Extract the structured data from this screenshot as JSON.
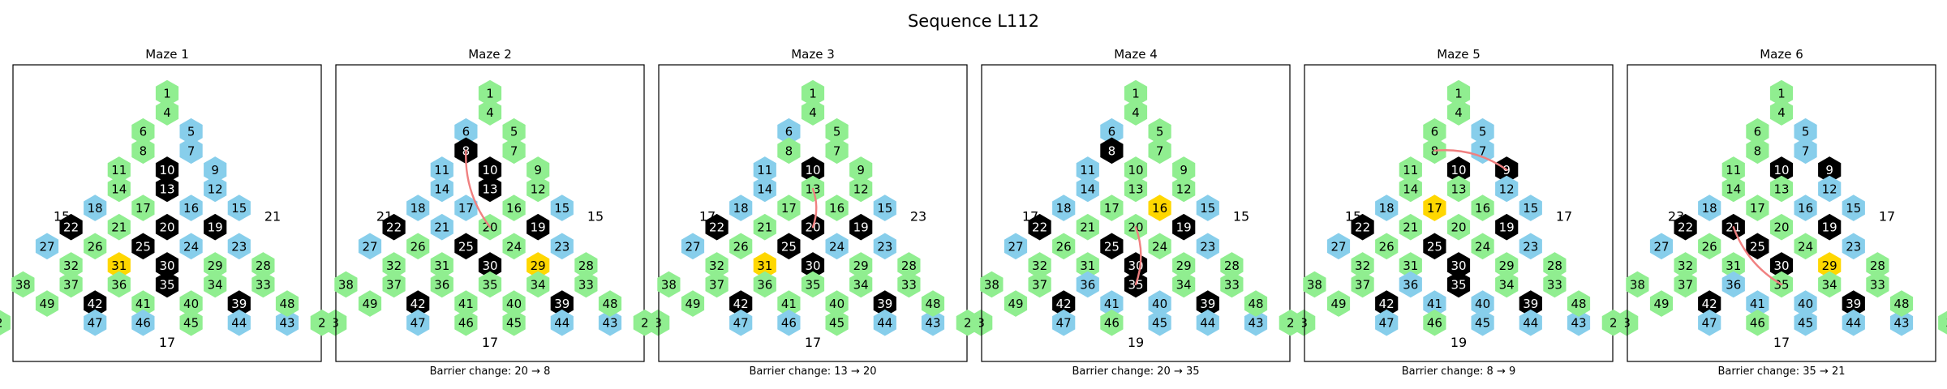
{
  "figure": {
    "title": "Sequence L112"
  },
  "colors": {
    "green": "#90EE90",
    "blue": "#87CEEB",
    "black": "#000000",
    "gold": "#FFD700",
    "barrier": "#F08080"
  },
  "mazes": [
    {
      "title": "Maze 1",
      "left_label": "15",
      "right_label": "21",
      "bottom_label": "17",
      "caption": "",
      "cells": {
        "1": "green",
        "2": "green",
        "3": "green",
        "4": "green",
        "5": "blue",
        "6": "green",
        "7": "blue",
        "8": "green",
        "9": "blue",
        "10": "black",
        "11": "green",
        "12": "blue",
        "13": "black",
        "14": "green",
        "15": "blue",
        "16": "blue",
        "17": "green",
        "18": "blue",
        "19": "black",
        "20": "black",
        "21": "green",
        "22": "black",
        "23": "blue",
        "24": "blue",
        "25": "black",
        "26": "green",
        "27": "blue",
        "28": "green",
        "29": "green",
        "30": "black",
        "31": "gold",
        "32": "green",
        "33": "green",
        "34": "green",
        "35": "black",
        "36": "green",
        "37": "green",
        "38": "green",
        "39": "black",
        "40": "green",
        "41": "green",
        "42": "black",
        "43": "blue",
        "44": "blue",
        "45": "green",
        "46": "blue",
        "47": "blue",
        "48": "green",
        "49": "green"
      },
      "barrier": null
    },
    {
      "title": "Maze 2",
      "left_label": "21",
      "right_label": "15",
      "bottom_label": "17",
      "caption": "Barrier change: 20 → 8",
      "cells": {
        "1": "green",
        "2": "green",
        "3": "green",
        "4": "green",
        "5": "green",
        "6": "blue",
        "7": "green",
        "8": "black",
        "9": "green",
        "10": "black",
        "11": "blue",
        "12": "green",
        "13": "black",
        "14": "blue",
        "15": "blue",
        "16": "green",
        "17": "blue",
        "18": "blue",
        "19": "black",
        "20": "green",
        "21": "blue",
        "22": "black",
        "23": "blue",
        "24": "green",
        "25": "black",
        "26": "green",
        "27": "blue",
        "28": "green",
        "29": "gold",
        "30": "black",
        "31": "green",
        "32": "green",
        "33": "green",
        "34": "green",
        "35": "green",
        "36": "green",
        "37": "green",
        "38": "green",
        "39": "black",
        "40": "green",
        "41": "green",
        "42": "black",
        "43": "blue",
        "44": "blue",
        "45": "green",
        "46": "green",
        "47": "blue",
        "48": "green",
        "49": "green"
      },
      "barrier": [
        "20",
        "8"
      ]
    },
    {
      "title": "Maze 3",
      "left_label": "17",
      "right_label": "23",
      "bottom_label": "17",
      "caption": "Barrier change: 13 → 20",
      "cells": {
        "1": "green",
        "2": "green",
        "3": "green",
        "4": "green",
        "5": "green",
        "6": "blue",
        "7": "green",
        "8": "green",
        "9": "green",
        "10": "black",
        "11": "blue",
        "12": "green",
        "13": "green",
        "14": "blue",
        "15": "blue",
        "16": "green",
        "17": "green",
        "18": "blue",
        "19": "black",
        "20": "black",
        "21": "green",
        "22": "black",
        "23": "blue",
        "24": "blue",
        "25": "black",
        "26": "green",
        "27": "blue",
        "28": "green",
        "29": "green",
        "30": "black",
        "31": "gold",
        "32": "green",
        "33": "green",
        "34": "green",
        "35": "green",
        "36": "green",
        "37": "green",
        "38": "green",
        "39": "black",
        "40": "green",
        "41": "green",
        "42": "black",
        "43": "blue",
        "44": "blue",
        "45": "green",
        "46": "blue",
        "47": "blue",
        "48": "green",
        "49": "green"
      },
      "barrier": [
        "13",
        "20"
      ]
    },
    {
      "title": "Maze 4",
      "left_label": "17",
      "right_label": "15",
      "bottom_label": "19",
      "caption": "Barrier change: 20 → 35",
      "cells": {
        "1": "green",
        "2": "green",
        "3": "green",
        "4": "green",
        "5": "green",
        "6": "blue",
        "7": "green",
        "8": "black",
        "9": "green",
        "10": "green",
        "11": "blue",
        "12": "green",
        "13": "green",
        "14": "blue",
        "15": "blue",
        "16": "gold",
        "17": "green",
        "18": "blue",
        "19": "black",
        "20": "green",
        "21": "green",
        "22": "black",
        "23": "blue",
        "24": "green",
        "25": "black",
        "26": "green",
        "27": "blue",
        "28": "green",
        "29": "green",
        "30": "black",
        "31": "green",
        "32": "green",
        "33": "green",
        "34": "green",
        "35": "black",
        "36": "blue",
        "37": "green",
        "38": "green",
        "39": "black",
        "40": "blue",
        "41": "blue",
        "42": "black",
        "43": "blue",
        "44": "blue",
        "45": "blue",
        "46": "green",
        "47": "blue",
        "48": "green",
        "49": "green"
      },
      "barrier": [
        "20",
        "35"
      ]
    },
    {
      "title": "Maze 5",
      "left_label": "15",
      "right_label": "17",
      "bottom_label": "19",
      "caption": "Barrier change: 8 → 9",
      "cells": {
        "1": "green",
        "2": "green",
        "3": "green",
        "4": "green",
        "5": "blue",
        "6": "green",
        "7": "blue",
        "8": "green",
        "9": "black",
        "10": "black",
        "11": "green",
        "12": "blue",
        "13": "green",
        "14": "green",
        "15": "blue",
        "16": "green",
        "17": "gold",
        "18": "blue",
        "19": "black",
        "20": "green",
        "21": "green",
        "22": "black",
        "23": "blue",
        "24": "green",
        "25": "black",
        "26": "green",
        "27": "blue",
        "28": "green",
        "29": "green",
        "30": "black",
        "31": "green",
        "32": "green",
        "33": "green",
        "34": "green",
        "35": "black",
        "36": "blue",
        "37": "green",
        "38": "green",
        "39": "black",
        "40": "blue",
        "41": "blue",
        "42": "black",
        "43": "blue",
        "44": "blue",
        "45": "blue",
        "46": "green",
        "47": "blue",
        "48": "green",
        "49": "green"
      },
      "barrier": [
        "8",
        "9"
      ]
    },
    {
      "title": "Maze 6",
      "left_label": "23",
      "right_label": "17",
      "bottom_label": "17",
      "caption": "Barrier change: 35 → 21",
      "cells": {
        "1": "green",
        "2": "green",
        "3": "green",
        "4": "green",
        "5": "blue",
        "6": "green",
        "7": "blue",
        "8": "green",
        "9": "black",
        "10": "black",
        "11": "green",
        "12": "blue",
        "13": "green",
        "14": "green",
        "15": "blue",
        "16": "blue",
        "17": "green",
        "18": "blue",
        "19": "black",
        "20": "green",
        "21": "black",
        "22": "black",
        "23": "blue",
        "24": "green",
        "25": "black",
        "26": "green",
        "27": "blue",
        "28": "green",
        "29": "gold",
        "30": "black",
        "31": "green",
        "32": "green",
        "33": "green",
        "34": "green",
        "35": "green",
        "36": "blue",
        "37": "green",
        "38": "green",
        "39": "black",
        "40": "blue",
        "41": "blue",
        "42": "black",
        "43": "blue",
        "44": "blue",
        "45": "blue",
        "46": "green",
        "47": "blue",
        "48": "green",
        "49": "green"
      },
      "barrier": [
        "35",
        "21"
      ]
    }
  ]
}
